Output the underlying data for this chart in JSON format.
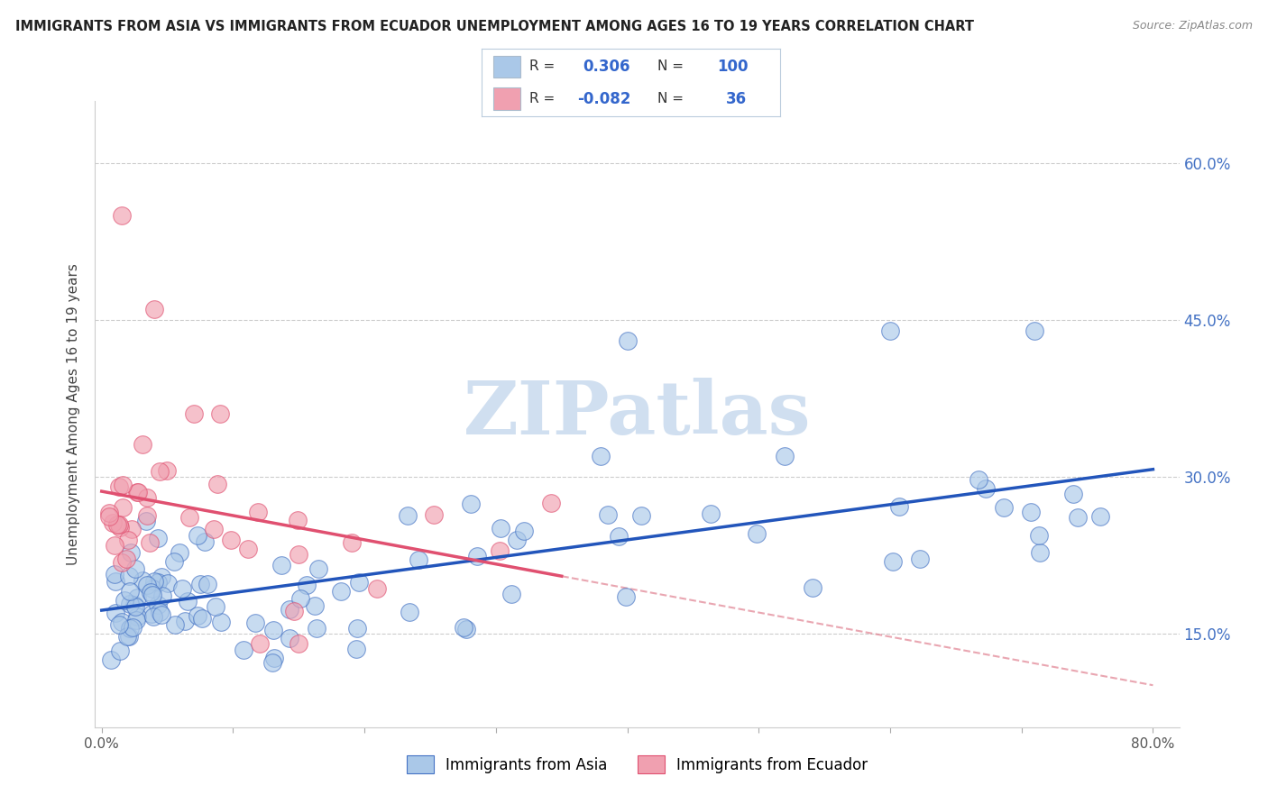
{
  "title": "IMMIGRANTS FROM ASIA VS IMMIGRANTS FROM ECUADOR UNEMPLOYMENT AMONG AGES 16 TO 19 YEARS CORRELATION CHART",
  "source": "Source: ZipAtlas.com",
  "ylabel": "Unemployment Among Ages 16 to 19 years",
  "yticks_labels": [
    "60.0%",
    "45.0%",
    "30.0%",
    "15.0%"
  ],
  "yticks_vals": [
    0.6,
    0.45,
    0.3,
    0.15
  ],
  "xticks_labels": [
    "0.0%",
    "",
    "",
    "",
    "",
    "",
    "",
    "",
    "80.0%"
  ],
  "xticks_vals": [
    0.0,
    0.1,
    0.2,
    0.3,
    0.4,
    0.5,
    0.6,
    0.7,
    0.8
  ],
  "xlim": [
    -0.005,
    0.82
  ],
  "ylim": [
    0.06,
    0.66
  ],
  "asia_R": 0.306,
  "asia_N": 100,
  "ecuador_R": -0.082,
  "ecuador_N": 36,
  "asia_scatter_color": "#aac8e8",
  "asia_scatter_edge": "#4472c4",
  "ecuador_scatter_color": "#f0a0b0",
  "ecuador_scatter_edge": "#e05070",
  "asia_line_color": "#2255bb",
  "ecuador_solid_color": "#e05070",
  "ecuador_dash_color": "#e08090",
  "watermark_color": "#d0dff0",
  "legend_box_color": "#e8f0f8",
  "legend_border_color": "#aabbcc"
}
